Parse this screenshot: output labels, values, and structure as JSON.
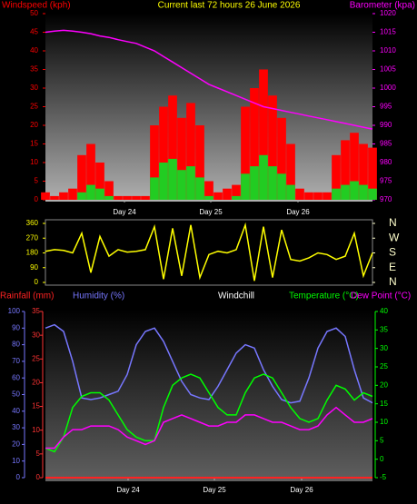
{
  "chart_data": [
    {
      "type": "line",
      "title": "Current last 72 hours 26 June 2026",
      "title_color": "#ffff00",
      "y_label": "Windspeed (kph)",
      "y_color": "#ff0000",
      "y2_label": "Barometer (kpa)",
      "y2_color": "#ff00ff",
      "x": [
        0,
        2,
        4,
        6,
        8,
        10,
        12,
        14,
        16,
        18,
        20,
        22,
        24,
        26,
        28,
        30,
        32,
        34,
        36,
        38,
        40,
        42,
        44,
        46,
        48,
        50,
        52,
        54,
        56,
        58,
        60,
        62,
        64,
        66,
        68,
        70,
        72
      ],
      "xlim": [
        0,
        72
      ],
      "xticks": [
        {
          "value": 17.4,
          "label": "Day 24"
        },
        {
          "value": 36.4,
          "label": "Day 25"
        },
        {
          "value": 55.6,
          "label": "Day 26"
        }
      ],
      "ylim": [
        0,
        50
      ],
      "yticks": [
        0,
        5,
        10,
        15,
        20,
        25,
        30,
        35,
        40,
        45,
        50
      ],
      "y2lim": [
        970,
        1020
      ],
      "y2ticks": [
        970,
        975,
        980,
        985,
        990,
        995,
        1000,
        1005,
        1010,
        1015,
        1020
      ],
      "series": [
        {
          "color": "#ff0000",
          "style": "bar",
          "axis": "y",
          "values": [
            2,
            1,
            2,
            3,
            12,
            15,
            10,
            5,
            1,
            1,
            1,
            1,
            20,
            25,
            28,
            22,
            26,
            20,
            5,
            2,
            3,
            4,
            25,
            30,
            35,
            28,
            22,
            15,
            3,
            2,
            2,
            2,
            12,
            16,
            18,
            15,
            14
          ]
        },
        {
          "color": "#22cc22",
          "style": "bar",
          "axis": "y",
          "values": [
            0,
            0,
            0,
            0,
            2,
            4,
            3,
            1,
            0,
            0,
            0,
            0,
            6,
            10,
            11,
            8,
            9,
            6,
            1,
            0,
            0,
            1,
            7,
            9,
            12,
            9,
            7,
            4,
            0,
            0,
            0,
            0,
            3,
            4,
            5,
            4,
            3
          ]
        },
        {
          "color": "#ff00ff",
          "style": "line",
          "axis": "y2",
          "values": [
            1015,
            1015.3,
            1015.5,
            1015.3,
            1015,
            1014.6,
            1014,
            1013.6,
            1013,
            1012.5,
            1012,
            1011,
            1010,
            1008.5,
            1007,
            1005.5,
            1004,
            1002.5,
            1001,
            1000,
            999,
            998,
            997,
            996,
            995,
            994.5,
            994,
            993.5,
            993,
            992.5,
            992,
            991.5,
            991,
            990.5,
            990,
            989.5,
            989
          ]
        }
      ]
    },
    {
      "type": "line",
      "y_color": "#ffff00",
      "y2_color": "#ffffcc",
      "x": [
        0,
        2,
        4,
        6,
        8,
        10,
        12,
        14,
        16,
        18,
        20,
        22,
        24,
        26,
        28,
        30,
        32,
        34,
        36,
        38,
        40,
        42,
        44,
        46,
        48,
        50,
        52,
        54,
        56,
        58,
        60,
        62,
        64,
        66,
        68,
        70,
        72
      ],
      "xlim": [
        0,
        72
      ],
      "ylim": [
        0,
        360
      ],
      "yticks": [
        0,
        90,
        180,
        270,
        360
      ],
      "y2lim": [
        0,
        360
      ],
      "y2ticks": [
        {
          "value": 0,
          "label": "N"
        },
        {
          "value": 90,
          "label": "E"
        },
        {
          "value": 180,
          "label": "S"
        },
        {
          "value": 270,
          "label": "W"
        },
        {
          "value": 360,
          "label": "N"
        }
      ],
      "series": [
        {
          "color": "#ffff00",
          "style": "line",
          "axis": "y",
          "values": [
            190,
            200,
            195,
            180,
            300,
            60,
            280,
            160,
            200,
            185,
            190,
            200,
            340,
            20,
            330,
            40,
            350,
            30,
            170,
            190,
            180,
            200,
            350,
            10,
            340,
            30,
            320,
            140,
            130,
            150,
            180,
            170,
            140,
            160,
            300,
            40,
            180
          ]
        }
      ]
    },
    {
      "type": "line",
      "x": [
        0,
        2,
        4,
        6,
        8,
        10,
        12,
        14,
        16,
        18,
        20,
        22,
        24,
        26,
        28,
        30,
        32,
        34,
        36,
        38,
        40,
        42,
        44,
        46,
        48,
        50,
        52,
        54,
        56,
        58,
        60,
        62,
        64,
        66,
        68,
        70,
        72
      ],
      "xlim": [
        0,
        72
      ],
      "xticks": [
        {
          "value": 18.2,
          "label": "Day 24"
        },
        {
          "value": 37.2,
          "label": "Day 25"
        },
        {
          "value": 56.4,
          "label": "Day 26"
        }
      ],
      "ylim": [
        0,
        35
      ],
      "yticks": [
        0,
        5,
        10,
        15,
        20,
        25,
        30,
        35
      ],
      "y_color": "#ff3333",
      "y3lim": [
        0,
        100
      ],
      "y3ticks": [
        0,
        10,
        20,
        30,
        40,
        50,
        60,
        70,
        80,
        90,
        100
      ],
      "y3_color": "#7777ff",
      "y2lim": [
        -5,
        40
      ],
      "y2ticks": [
        -5,
        0,
        5,
        10,
        15,
        20,
        25,
        30,
        35,
        40
      ],
      "y2_color": "#00ff00",
      "extra_labels": [
        {
          "text": "Windchill",
          "color": "#ffffff"
        }
      ],
      "series": [
        {
          "name": "Rainfall (mm)",
          "color": "#ff2222",
          "style": "line",
          "axis": "y",
          "values": [
            0,
            0,
            0,
            0,
            0,
            0,
            0,
            0,
            0,
            0,
            0,
            0,
            0,
            0,
            0,
            0,
            0,
            0,
            0,
            0,
            0,
            0,
            0,
            0,
            0,
            0,
            0,
            0,
            0,
            0,
            0,
            0,
            0,
            0,
            0,
            0,
            0
          ]
        },
        {
          "name": "Humidity (%)",
          "color": "#7777ff",
          "style": "line",
          "axis": "y3",
          "values": [
            90,
            92,
            88,
            70,
            48,
            47,
            48,
            50,
            52,
            62,
            80,
            88,
            90,
            82,
            70,
            58,
            50,
            48,
            47,
            55,
            65,
            75,
            80,
            78,
            65,
            55,
            47,
            45,
            46,
            60,
            78,
            88,
            90,
            85,
            65,
            48,
            45
          ]
        },
        {
          "name": "Temperature (°C)",
          "color": "#00ff00",
          "style": "line",
          "axis": "y2",
          "values": [
            3,
            2,
            6,
            14,
            17,
            18,
            18,
            16,
            12,
            8,
            6,
            5,
            5,
            14,
            20,
            22,
            23,
            22,
            18,
            14,
            12,
            12,
            18,
            22,
            23,
            22,
            18,
            14,
            11,
            10,
            11,
            16,
            20,
            19,
            16,
            18,
            17
          ]
        },
        {
          "name": "Dew Point (°C)",
          "color": "#ff00ff",
          "style": "line",
          "axis": "y2",
          "values": [
            3,
            3,
            6,
            8,
            8,
            9,
            9,
            9,
            8,
            6,
            5,
            4,
            5,
            10,
            11,
            12,
            11,
            10,
            9,
            9,
            10,
            10,
            12,
            12,
            11,
            10,
            10,
            9,
            8,
            8,
            9,
            12,
            14,
            12,
            10,
            10,
            11
          ]
        }
      ]
    }
  ]
}
